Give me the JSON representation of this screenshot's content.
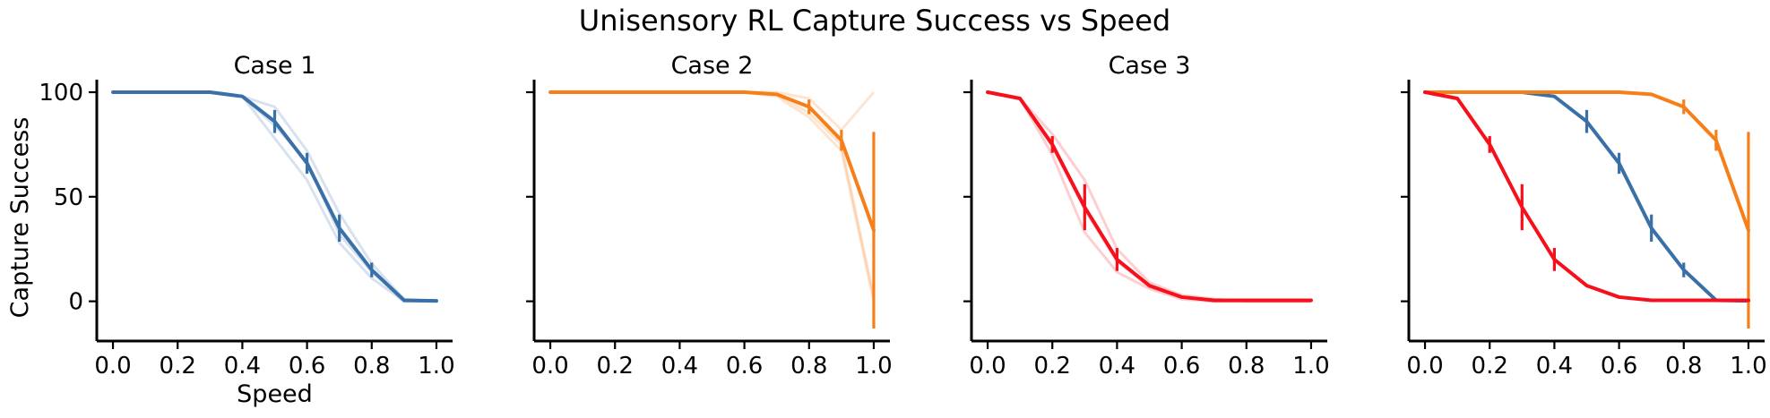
{
  "figure": {
    "title": "Unisensory RL Capture Success vs Speed"
  },
  "colors": {
    "case1": "#3a70a8",
    "case2": "#f77f1a",
    "case3": "#f5101c",
    "axis": "#000000"
  },
  "chart_data": [
    {
      "type": "line",
      "title": "Case 1",
      "xlabel": "Speed",
      "ylabel": "Capture Success",
      "xlim": [
        -0.05,
        1.05
      ],
      "ylim": [
        -19,
        106
      ],
      "xticks": [
        0.0,
        0.2,
        0.4,
        0.6,
        0.8,
        1.0
      ],
      "xticklabels": [
        "0.0",
        "0.2",
        "0.4",
        "0.6",
        "0.8",
        "1.0"
      ],
      "yticks": [
        0,
        50,
        100
      ],
      "yticklabels": [
        "0",
        "50",
        "100"
      ],
      "x": [
        0.0,
        0.1,
        0.2,
        0.3,
        0.4,
        0.5,
        0.6,
        0.7,
        0.8,
        0.9,
        1.0
      ],
      "series": [
        {
          "values": [
            100,
            100,
            100,
            100,
            98,
            86,
            66,
            35,
            15,
            0.5,
            0.2
          ],
          "error": [
            0,
            0,
            0,
            0,
            0,
            5.5,
            5,
            6.5,
            3.5,
            0,
            0
          ],
          "color_key": "case1"
        }
      ],
      "faint_lines": [
        [
          100,
          100,
          100,
          100,
          98,
          93,
          72,
          42,
          18,
          1,
          0
        ],
        [
          100,
          100,
          100,
          100,
          98,
          84,
          67,
          32,
          14,
          0,
          0
        ],
        [
          100,
          100,
          100,
          100,
          98,
          78,
          58,
          28,
          11,
          0,
          0
        ]
      ]
    },
    {
      "type": "line",
      "title": "Case 2",
      "xlim": [
        -0.05,
        1.05
      ],
      "ylim": [
        -19,
        106
      ],
      "xticks": [
        0.0,
        0.2,
        0.4,
        0.6,
        0.8,
        1.0
      ],
      "xticklabels": [
        "0.0",
        "0.2",
        "0.4",
        "0.6",
        "0.8",
        "1.0"
      ],
      "yticks": [
        0,
        50,
        100
      ],
      "yticklabels": [],
      "x": [
        0.0,
        0.1,
        0.2,
        0.3,
        0.4,
        0.5,
        0.6,
        0.7,
        0.8,
        0.9,
        1.0
      ],
      "series": [
        {
          "values": [
            100,
            100,
            100,
            100,
            100,
            100,
            100,
            99,
            93,
            77,
            34
          ],
          "error": [
            0,
            0,
            0,
            0,
            0,
            0,
            0,
            0,
            3.5,
            5,
            47
          ],
          "color_key": "case2"
        }
      ],
      "faint_lines": [
        [
          100,
          100,
          100,
          100,
          100,
          100,
          100,
          100,
          97,
          82,
          100
        ],
        [
          100,
          100,
          100,
          100,
          100,
          100,
          100,
          99,
          90,
          75,
          2
        ],
        [
          100,
          100,
          100,
          100,
          100,
          100,
          100,
          98,
          88,
          72,
          0
        ]
      ]
    },
    {
      "type": "line",
      "title": "Case 3",
      "xlim": [
        -0.05,
        1.05
      ],
      "ylim": [
        -19,
        106
      ],
      "xticks": [
        0.0,
        0.2,
        0.4,
        0.6,
        0.8,
        1.0
      ],
      "xticklabels": [
        "0.0",
        "0.2",
        "0.4",
        "0.6",
        "0.8",
        "1.0"
      ],
      "yticks": [
        0,
        50,
        100
      ],
      "yticklabels": [],
      "x": [
        0.0,
        0.1,
        0.2,
        0.3,
        0.4,
        0.5,
        0.6,
        0.7,
        0.8,
        0.9,
        1.0
      ],
      "series": [
        {
          "values": [
            100,
            97,
            75,
            45,
            20,
            7.5,
            2,
            0.5,
            0.5,
            0.5,
            0.5
          ],
          "error": [
            0,
            0,
            4,
            11,
            5.5,
            0,
            0,
            0,
            0,
            0,
            0
          ],
          "color_key": "case3"
        }
      ],
      "faint_lines": [
        [
          100,
          97,
          80,
          58,
          25,
          9,
          3,
          1,
          0,
          0,
          0
        ],
        [
          100,
          97,
          74,
          44,
          19,
          7,
          2,
          0,
          0,
          0,
          0
        ],
        [
          100,
          97,
          70,
          33,
          14,
          6,
          1,
          0,
          0,
          0,
          0
        ]
      ]
    },
    {
      "type": "line",
      "title": "",
      "xlim": [
        -0.05,
        1.05
      ],
      "ylim": [
        -19,
        106
      ],
      "xticks": [
        0.0,
        0.2,
        0.4,
        0.6,
        0.8,
        1.0
      ],
      "xticklabels": [
        "0.0",
        "0.2",
        "0.4",
        "0.6",
        "0.8",
        "1.0"
      ],
      "yticks": [
        0,
        50,
        100
      ],
      "yticklabels": [],
      "x": [
        0.0,
        0.1,
        0.2,
        0.3,
        0.4,
        0.5,
        0.6,
        0.7,
        0.8,
        0.9,
        1.0
      ],
      "series": [
        {
          "values": [
            100,
            100,
            100,
            100,
            98,
            86,
            66,
            35,
            15,
            0.5,
            0.2
          ],
          "error": [
            0,
            0,
            0,
            0,
            0,
            5.5,
            5,
            6.5,
            3.5,
            0,
            0
          ],
          "color_key": "case1"
        },
        {
          "values": [
            100,
            100,
            100,
            100,
            100,
            100,
            100,
            99,
            93,
            77,
            34
          ],
          "error": [
            0,
            0,
            0,
            0,
            0,
            0,
            0,
            0,
            3.5,
            5,
            47
          ],
          "color_key": "case2"
        },
        {
          "values": [
            100,
            97,
            75,
            45,
            20,
            7.5,
            2,
            0.5,
            0.5,
            0.5,
            0.5
          ],
          "error": [
            0,
            0,
            4,
            11,
            5.5,
            0,
            0,
            0,
            0,
            0,
            0
          ],
          "color_key": "case3"
        }
      ],
      "faint_lines": []
    }
  ]
}
